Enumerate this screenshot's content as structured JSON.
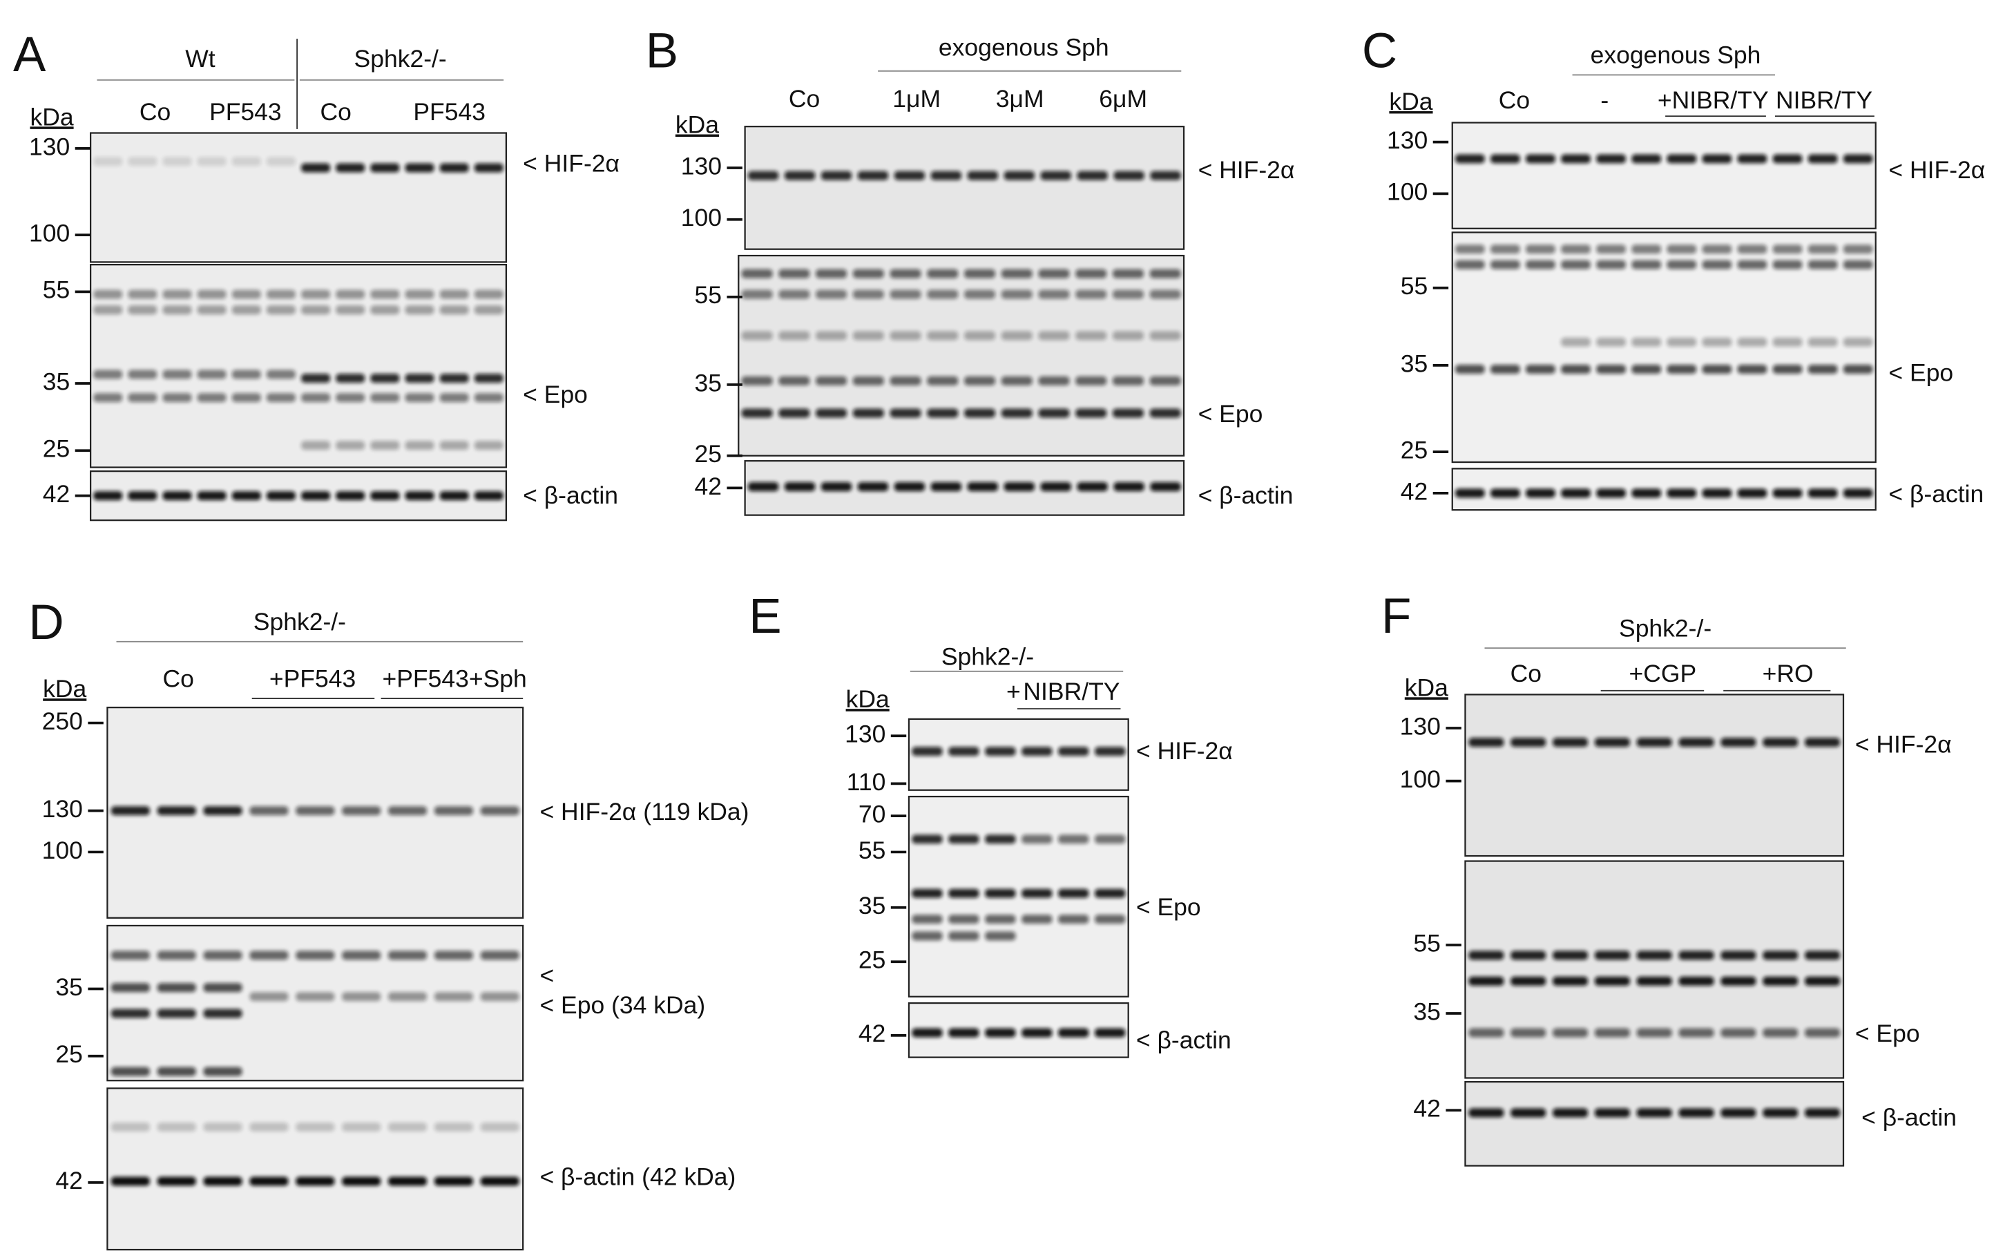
{
  "panels": [
    {
      "letter": "A",
      "header": [
        "Wt",
        "Sphk2-/-"
      ],
      "lanes": [
        "Co",
        "PF543",
        "Co",
        "PF543"
      ],
      "kda": "kDa",
      "markers": [
        "130",
        "100",
        "55",
        "35",
        "25",
        "42"
      ],
      "targets": [
        "< HIF-2α",
        "< Epo",
        "< β-actin"
      ]
    },
    {
      "letter": "B",
      "header": [
        "exogenous Sph"
      ],
      "lanes": [
        "Co",
        "1μM",
        "3μM",
        "6μM"
      ],
      "kda": "kDa",
      "markers": [
        "130",
        "100",
        "55",
        "35",
        "25",
        "42"
      ],
      "targets": [
        "< HIF-2α",
        "< Epo",
        "< β-actin"
      ]
    },
    {
      "letter": "C",
      "header": [
        "exogenous Sph"
      ],
      "lanes": [
        "Co",
        "-",
        "+NIBR/TY",
        "NIBR/TY"
      ],
      "kda": "kDa",
      "markers": [
        "130",
        "100",
        "55",
        "35",
        "25",
        "42"
      ],
      "targets": [
        "< HIF-2α",
        "< Epo",
        "< β-actin"
      ]
    },
    {
      "letter": "D",
      "header": [
        "Sphk2-/-"
      ],
      "lanes": [
        "Co",
        "+PF543",
        "+PF543+Sph"
      ],
      "kda": "kDa",
      "markers": [
        "250",
        "130",
        "100",
        "35",
        "25",
        "42"
      ],
      "targets": [
        "< HIF-2α (119 kDa)",
        "<",
        "< Epo (34 kDa)",
        "< β-actin (42 kDa)"
      ]
    },
    {
      "letter": "E",
      "header": [
        "Sphk2-/-"
      ],
      "lanes": [
        "+",
        "NIBR/TY"
      ],
      "kda": "kDa",
      "markers": [
        "130",
        "110",
        "70",
        "55",
        "35",
        "25",
        "42"
      ],
      "targets": [
        "< HIF-2α",
        "< Epo",
        "< β-actin"
      ]
    },
    {
      "letter": "F",
      "header": [
        "Sphk2-/-"
      ],
      "lanes": [
        "Co",
        "+CGP",
        "+RO"
      ],
      "kda": "kDa",
      "markers": [
        "130",
        "100",
        "55",
        "35",
        "42"
      ],
      "targets": [
        "< HIF-2α",
        "< Epo",
        "< β-actin"
      ]
    }
  ]
}
